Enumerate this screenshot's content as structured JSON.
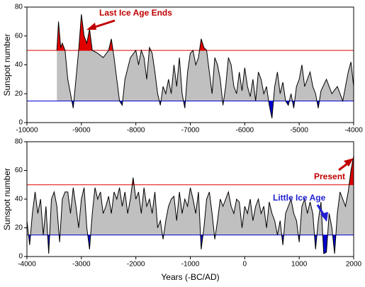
{
  "chart_data": [
    {
      "type": "area",
      "ylabel": "Sunspot number",
      "fill": "#c0c0c0",
      "line_color": "#000000",
      "thresholds": [
        {
          "value": 50,
          "color": "#e00000"
        },
        {
          "value": 15,
          "color": "#0000d0"
        }
      ],
      "xlim": [
        -10000,
        -4000
      ],
      "xticks": [
        -10000,
        -9000,
        -8000,
        -7000,
        -6000,
        -5000,
        -4000
      ],
      "ylim": [
        0,
        80
      ],
      "yticks": [
        0,
        20,
        40,
        60,
        80
      ],
      "annotations": [
        {
          "text": "Last Ice Age Ends",
          "color": "#c00000"
        }
      ],
      "x": [
        -9450,
        -9420,
        -9380,
        -9350,
        -9300,
        -9250,
        -9200,
        -9150,
        -9100,
        -9050,
        -9000,
        -8950,
        -8900,
        -8850,
        -8800,
        -8700,
        -8600,
        -8500,
        -8450,
        -8400,
        -8350,
        -8300,
        -8250,
        -8200,
        -8100,
        -8000,
        -7950,
        -7900,
        -7850,
        -7800,
        -7750,
        -7700,
        -7650,
        -7600,
        -7550,
        -7500,
        -7450,
        -7400,
        -7350,
        -7300,
        -7250,
        -7200,
        -7150,
        -7100,
        -7050,
        -7000,
        -6950,
        -6900,
        -6850,
        -6800,
        -6750,
        -6700,
        -6650,
        -6600,
        -6550,
        -6500,
        -6450,
        -6400,
        -6350,
        -6300,
        -6250,
        -6200,
        -6150,
        -6100,
        -6050,
        -6000,
        -5950,
        -5900,
        -5850,
        -5800,
        -5750,
        -5700,
        -5650,
        -5600,
        -5550,
        -5500,
        -5450,
        -5400,
        -5350,
        -5300,
        -5250,
        -5200,
        -5150,
        -5100,
        -5050,
        -5000,
        -4950,
        -4900,
        -4850,
        -4800,
        -4750,
        -4700,
        -4650,
        -4600,
        -4500,
        -4400,
        -4300,
        -4200,
        -4100,
        -4050,
        -4000
      ],
      "values": [
        50,
        70,
        52,
        55,
        50,
        30,
        20,
        10,
        30,
        50,
        75,
        60,
        55,
        65,
        50,
        48,
        45,
        50,
        58,
        45,
        30,
        15,
        12,
        30,
        45,
        50,
        40,
        50,
        45,
        30,
        52,
        48,
        35,
        20,
        12,
        25,
        20,
        30,
        20,
        40,
        25,
        45,
        20,
        10,
        35,
        48,
        50,
        40,
        45,
        58,
        52,
        50,
        35,
        20,
        45,
        40,
        30,
        12,
        25,
        45,
        40,
        25,
        20,
        35,
        22,
        38,
        25,
        18,
        30,
        15,
        35,
        30,
        20,
        25,
        12,
        3,
        25,
        35,
        20,
        28,
        15,
        12,
        20,
        10,
        25,
        30,
        40,
        25,
        30,
        35,
        25,
        20,
        10,
        22,
        30,
        20,
        25,
        15,
        35,
        42,
        25
      ]
    },
    {
      "type": "area",
      "ylabel": "Sunspot number",
      "xlabel": "Years (-BC/AD)",
      "fill": "#c0c0c0",
      "line_color": "#000000",
      "thresholds": [
        {
          "value": 50,
          "color": "#e00000"
        },
        {
          "value": 15,
          "color": "#0000d0"
        }
      ],
      "xlim": [
        -4000,
        2000
      ],
      "xticks": [
        -4000,
        -3000,
        -2000,
        -1000,
        0,
        1000,
        2000
      ],
      "ylim": [
        0,
        80
      ],
      "yticks": [
        0,
        20,
        40,
        60,
        80
      ],
      "annotations": [
        {
          "text": "Present",
          "color": "#c00000"
        },
        {
          "text": "Little Ice Age",
          "color": "#2020d0"
        }
      ],
      "x": [
        -4000,
        -3950,
        -3900,
        -3850,
        -3800,
        -3750,
        -3700,
        -3650,
        -3600,
        -3550,
        -3500,
        -3450,
        -3400,
        -3350,
        -3300,
        -3250,
        -3200,
        -3150,
        -3100,
        -3050,
        -3000,
        -2950,
        -2900,
        -2850,
        -2800,
        -2750,
        -2700,
        -2650,
        -2600,
        -2550,
        -2500,
        -2450,
        -2400,
        -2350,
        -2300,
        -2250,
        -2200,
        -2150,
        -2100,
        -2050,
        -2000,
        -1950,
        -1900,
        -1850,
        -1800,
        -1750,
        -1700,
        -1650,
        -1600,
        -1550,
        -1500,
        -1450,
        -1400,
        -1350,
        -1300,
        -1250,
        -1200,
        -1150,
        -1100,
        -1050,
        -1000,
        -950,
        -900,
        -850,
        -800,
        -750,
        -700,
        -650,
        -600,
        -550,
        -500,
        -450,
        -400,
        -350,
        -300,
        -250,
        -200,
        -150,
        -100,
        -50,
        0,
        50,
        100,
        150,
        200,
        250,
        300,
        350,
        400,
        450,
        500,
        550,
        600,
        650,
        700,
        750,
        800,
        850,
        900,
        950,
        1000,
        1050,
        1100,
        1150,
        1200,
        1250,
        1300,
        1350,
        1400,
        1450,
        1500,
        1550,
        1600,
        1650,
        1700,
        1750,
        1800,
        1850,
        1900,
        1950,
        2000
      ],
      "values": [
        25,
        8,
        30,
        45,
        30,
        40,
        15,
        35,
        2,
        40,
        45,
        35,
        10,
        40,
        45,
        45,
        30,
        48,
        35,
        20,
        40,
        48,
        20,
        5,
        30,
        48,
        40,
        45,
        30,
        35,
        42,
        30,
        45,
        40,
        48,
        35,
        45,
        30,
        40,
        55,
        40,
        45,
        30,
        48,
        35,
        40,
        30,
        45,
        20,
        25,
        12,
        25,
        35,
        40,
        42,
        25,
        45,
        30,
        40,
        35,
        48,
        40,
        30,
        45,
        5,
        20,
        40,
        45,
        30,
        12,
        25,
        40,
        35,
        40,
        45,
        35,
        30,
        40,
        38,
        20,
        35,
        30,
        40,
        25,
        35,
        40,
        30,
        35,
        20,
        38,
        30,
        25,
        15,
        25,
        8,
        30,
        35,
        40,
        30,
        25,
        10,
        35,
        40,
        30,
        38,
        30,
        5,
        25,
        38,
        2,
        3,
        30,
        20,
        2,
        30,
        45,
        40,
        35,
        45,
        60,
        70
      ]
    }
  ]
}
